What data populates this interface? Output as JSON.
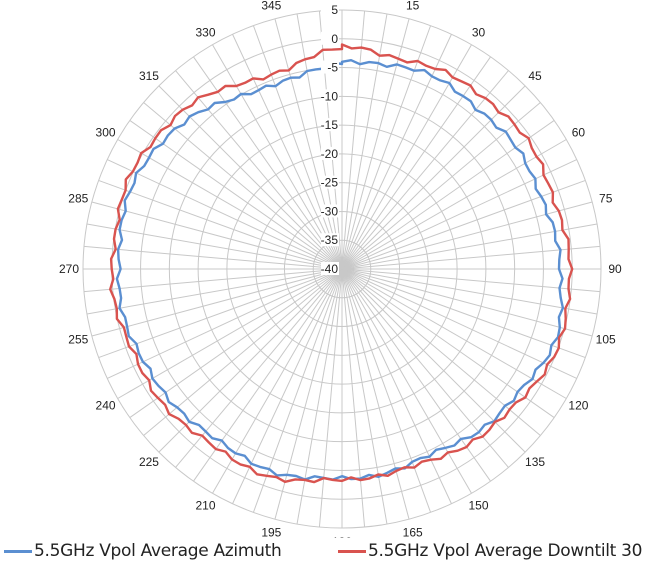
{
  "chart_data": {
    "type": "polar-line",
    "title": "",
    "radial_axis": {
      "min": -40,
      "max": 5,
      "step": 5,
      "tick_labels": [
        "-40",
        "-35",
        "-30",
        "-25",
        "-20",
        "-15",
        "-10",
        "-5",
        "0",
        "5"
      ]
    },
    "angular_axis": {
      "step": 15,
      "tick_labels": [
        "0",
        "15",
        "30",
        "45",
        "60",
        "75",
        "90",
        "105",
        "120",
        "135",
        "150",
        "165",
        "180",
        "195",
        "210",
        "225",
        "240",
        "255",
        "270",
        "285",
        "300",
        "315",
        "330",
        "345"
      ]
    },
    "grid": true,
    "legend_position": "bottom",
    "angles": [
      0,
      15,
      30,
      45,
      60,
      75,
      90,
      105,
      120,
      135,
      150,
      165,
      180,
      195,
      210,
      225,
      240,
      255,
      270,
      285,
      300,
      315,
      330,
      345
    ],
    "series": [
      {
        "name": "5.5GHz Vpol Average Azimuth",
        "color": "#5b8fd1",
        "values": [
          -4,
          -3.5,
          -3,
          -3.5,
          -3,
          -3,
          -2,
          -1,
          -2,
          -3,
          -4,
          -4,
          -3.5,
          -3,
          -3,
          -3,
          -2,
          -1.5,
          -1,
          -1,
          -1,
          -3,
          -5,
          -6
        ]
      },
      {
        "name": "5.5GHz Vpol Average Downtilt 30",
        "color": "#d9534f",
        "values": [
          -1.5,
          -2,
          -1.5,
          -1,
          -1,
          -1,
          -0.5,
          0,
          -1,
          -2,
          -3,
          -3.5,
          -3.5,
          -2,
          -2,
          -1.5,
          -1,
          -0.5,
          0,
          0,
          0,
          -1,
          -3,
          -4
        ]
      }
    ]
  }
}
